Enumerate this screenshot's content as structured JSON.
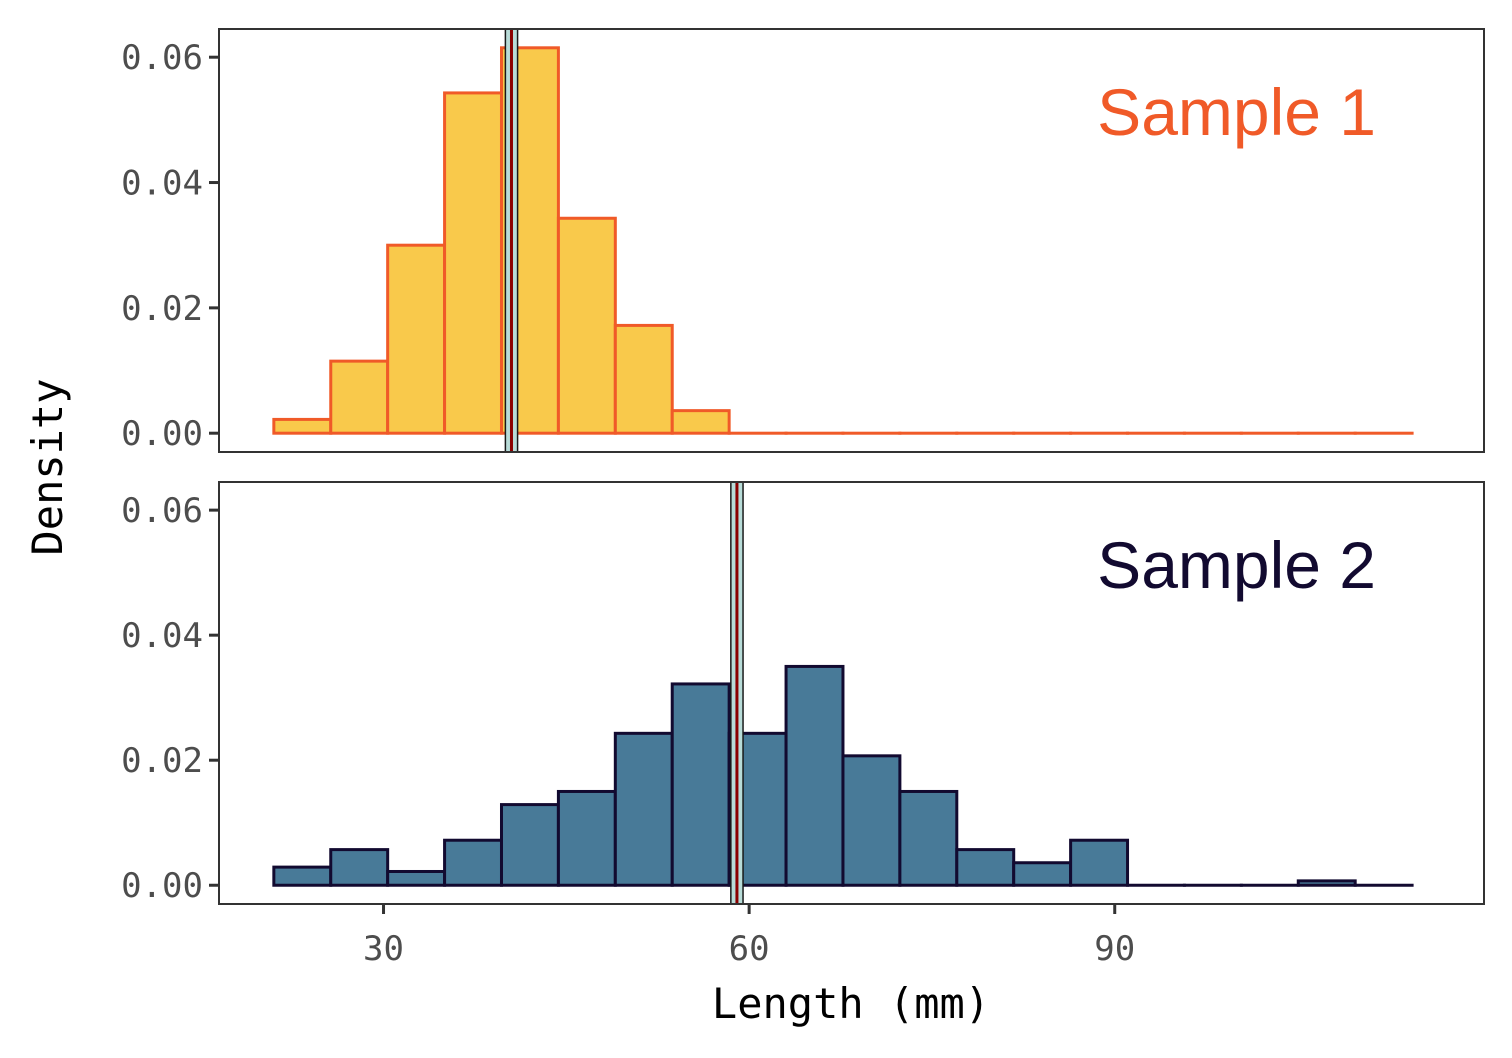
{
  "chart_data": {
    "type": "bar",
    "xlabel": "Length (mm)",
    "ylabel": "Density",
    "xlim": [
      16.5,
      120.3
    ],
    "ylim": [
      -0.003,
      0.0645
    ],
    "x_ticks": [
      30,
      60,
      90
    ],
    "x_tick_labels": [
      "30",
      "60",
      "90"
    ],
    "y_ticks": [
      0,
      0.02,
      0.04,
      0.06
    ],
    "y_tick_labels": [
      "0.00",
      "0.02",
      "0.04",
      "0.06"
    ],
    "grid": false,
    "bin_width": 4.67,
    "panels": [
      {
        "label": "Sample 1",
        "label_color": "#f05a28",
        "fill": "#f9c94b",
        "stroke": "#f05a28",
        "bin_starts": [
          21.0,
          25.67,
          30.34,
          35.01,
          39.68,
          44.35,
          49.02,
          53.69,
          58.36,
          63.03,
          67.7,
          72.37,
          77.04,
          81.71,
          86.38,
          91.05,
          95.72,
          100.39,
          105.06,
          109.73
        ],
        "values": [
          0.0022,
          0.0115,
          0.03,
          0.0543,
          0.0615,
          0.0343,
          0.0172,
          0.0036,
          0,
          0,
          0,
          0,
          0,
          0,
          0,
          0,
          0,
          0,
          0,
          0
        ],
        "mean": 40.5,
        "mean_band": [
          40.0,
          41.0
        ]
      },
      {
        "label": "Sample 2",
        "label_color": "#120a30",
        "fill": "#487a98",
        "stroke": "#120a30",
        "bin_starts": [
          21.0,
          25.67,
          30.34,
          35.01,
          39.68,
          44.35,
          49.02,
          53.69,
          58.36,
          63.03,
          67.7,
          72.37,
          77.04,
          81.71,
          86.38,
          91.05,
          95.72,
          100.39,
          105.06,
          109.73
        ],
        "values": [
          0.0029,
          0.0057,
          0.0022,
          0.0072,
          0.0129,
          0.015,
          0.0243,
          0.0322,
          0.0243,
          0.035,
          0.0207,
          0.015,
          0.0057,
          0.0036,
          0.0072,
          0,
          0,
          0,
          0.0007,
          0
        ],
        "mean": 59.0,
        "mean_band": [
          58.5,
          59.5
        ]
      }
    ],
    "mean_line_color": "#8b0000",
    "mean_band_fill": "#b8dcd8"
  }
}
